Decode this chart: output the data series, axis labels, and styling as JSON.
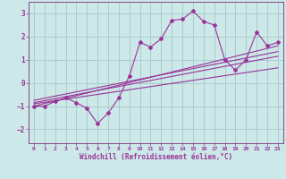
{
  "xlabel": "Windchill (Refroidissement éolien,°C)",
  "bg_color": "#cce8e8",
  "grid_color": "#aacccc",
  "line_color": "#993399",
  "spine_color": "#884488",
  "xlim": [
    -0.5,
    23.5
  ],
  "ylim": [
    -2.6,
    3.5
  ],
  "yticks": [
    -2,
    -1,
    0,
    1,
    2,
    3
  ],
  "xticks": [
    0,
    1,
    2,
    3,
    4,
    5,
    6,
    7,
    8,
    9,
    10,
    11,
    12,
    13,
    14,
    15,
    16,
    17,
    18,
    19,
    20,
    21,
    22,
    23
  ],
  "data_x": [
    0,
    1,
    2,
    3,
    4,
    5,
    6,
    7,
    8,
    9,
    10,
    11,
    12,
    13,
    14,
    15,
    16,
    17,
    18,
    19,
    20,
    21,
    22,
    23
  ],
  "data_y": [
    -1.0,
    -1.0,
    -0.8,
    -0.65,
    -0.85,
    -1.1,
    -1.75,
    -1.3,
    -0.65,
    0.3,
    1.75,
    1.55,
    1.9,
    2.7,
    2.75,
    3.1,
    2.65,
    2.5,
    1.0,
    0.55,
    1.0,
    2.2,
    1.6,
    1.75
  ],
  "trend_lines": [
    {
      "x0": 0,
      "y0": -1.0,
      "x1": 23,
      "y1": 1.6
    },
    {
      "x0": 0,
      "y0": -0.9,
      "x1": 23,
      "y1": 0.65
    },
    {
      "x0": 0,
      "y0": -0.85,
      "x1": 23,
      "y1": 1.15
    },
    {
      "x0": 0,
      "y0": -0.75,
      "x1": 23,
      "y1": 1.35
    }
  ]
}
